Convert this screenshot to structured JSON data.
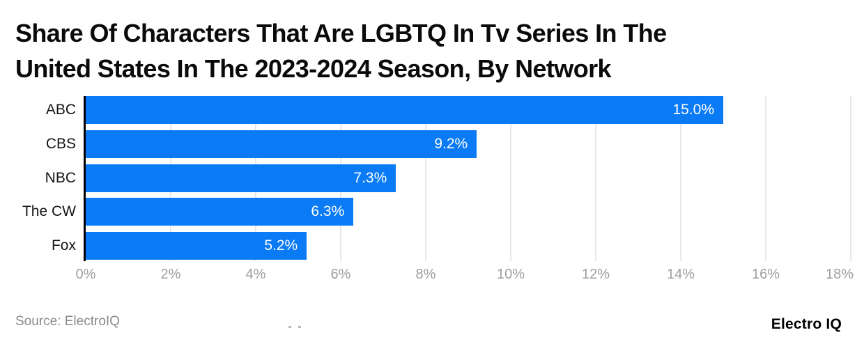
{
  "title": {
    "line1": "Share Of Characters That Are LGBTQ In Tv Series In The",
    "line2": "United States In The 2023-2024 Season, By Network"
  },
  "chart_data": {
    "type": "bar",
    "orientation": "horizontal",
    "title": "Share Of Characters That Are LGBTQ In Tv Series In The United States In The 2023-2024 Season, By Network",
    "categories": [
      "ABC",
      "CBS",
      "NBC",
      "The CW",
      "Fox"
    ],
    "values": [
      15.0,
      9.2,
      7.3,
      6.3,
      5.2
    ],
    "value_labels": [
      "15.0%",
      "9.2%",
      "7.3%",
      "6.3%",
      "5.2%"
    ],
    "xlabel": "",
    "ylabel": "",
    "xlim": [
      0,
      18
    ],
    "x_tick_values": [
      0,
      2,
      4,
      6,
      8,
      10,
      12,
      14,
      16,
      18
    ],
    "x_tick_labels": [
      "0%",
      "2%",
      "4%",
      "6%",
      "8%",
      "10%",
      "12%",
      "14%",
      "16%",
      "18%"
    ],
    "grid": true,
    "legend": false,
    "bar_color": "#0b7bf5",
    "value_label_color": "#ffffff",
    "category_label_color": "#141414",
    "tick_label_color": "#9e9e9e",
    "gridline_color": "#e7e7e7",
    "axis_line_color": "#000000"
  },
  "footer": {
    "source": "Source: ElectroIQ",
    "brand": "Electro IQ"
  }
}
